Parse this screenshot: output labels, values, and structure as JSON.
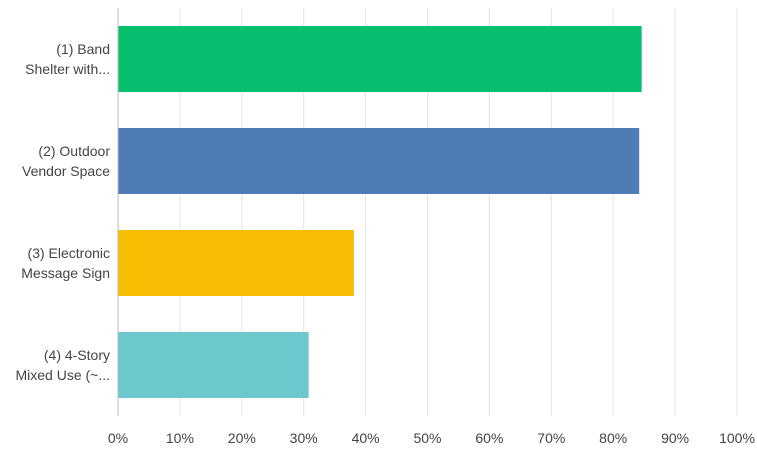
{
  "chart_data": {
    "type": "bar",
    "orientation": "horizontal",
    "categories": [
      [
        "(1) Band",
        "Shelter with..."
      ],
      [
        "(2) Outdoor",
        "Vendor Space"
      ],
      [
        "(3) Electronic",
        "Message Sign"
      ],
      [
        "(4) 4-Story",
        "Mixed Use (~..."
      ]
    ],
    "values": [
      84.6,
      84.2,
      38.1,
      30.8
    ],
    "colors": [
      "#06bf6f",
      "#507cb6",
      "#f7bd00",
      "#6bc8cd"
    ],
    "xlim": [
      0,
      100
    ],
    "xticks": [
      "0%",
      "10%",
      "20%",
      "30%",
      "40%",
      "50%",
      "60%",
      "70%",
      "80%",
      "90%",
      "100%"
    ],
    "grid": true,
    "legend": "none"
  }
}
